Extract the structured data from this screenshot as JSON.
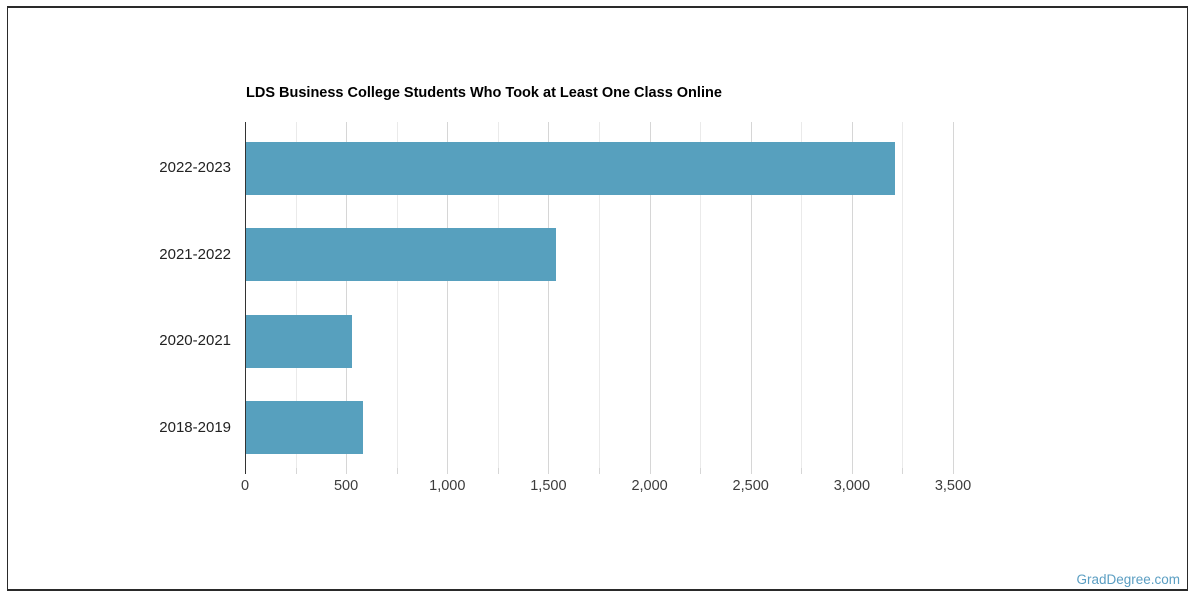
{
  "watermark": {
    "text": "GradDegree.com",
    "color": "#5b9ec2"
  },
  "chart_data": {
    "type": "bar",
    "orientation": "horizontal",
    "title": "LDS Business College Students Who Took at Least One Class Online",
    "categories": [
      "2022-2023",
      "2021-2022",
      "2020-2021",
      "2018-2019"
    ],
    "values": [
      3210,
      1530,
      525,
      580
    ],
    "xlabel": "",
    "ylabel": "",
    "xlim": [
      0,
      3500
    ],
    "x_tick_interval": 500,
    "x_minor_grid_interval": 250,
    "x_tick_labels": [
      "0",
      "500",
      "1,000",
      "1,500",
      "2,000",
      "2,500",
      "3,000",
      "3,500"
    ],
    "grid": true,
    "legend": false,
    "colors": {
      "bar": "#57a0be",
      "major_grid": "#d6d6d6",
      "minor_grid": "#eaeaea",
      "axis": "#333333",
      "tick": "#d6d6d6",
      "title": "#000000",
      "category_label": "#222222",
      "tick_label": "#3c3c3c"
    }
  }
}
